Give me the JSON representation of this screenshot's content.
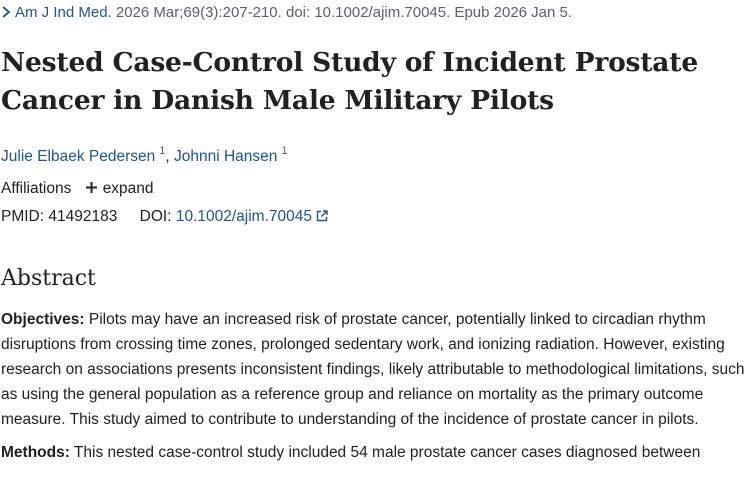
{
  "citation": {
    "journal": "Am J Ind Med.",
    "details": "2026 Mar;69(3):207-210. doi: 10.1002/ajim.70045. Epub 2026 Jan 5."
  },
  "article": {
    "title": "Nested Case-Control Study of Incident Prostate Cancer in Danish Male Military Pilots",
    "authors": [
      {
        "name": "Julie Elbaek Pedersen",
        "affiliation": "1"
      },
      {
        "name": "Johnni Hansen",
        "affiliation": "1"
      }
    ],
    "affiliations_label": "Affiliations",
    "expand_label": "expand",
    "pmid_label": "PMID:",
    "pmid": "41492183",
    "doi_label": "DOI:",
    "doi": "10.1002/ajim.70045"
  },
  "abstract": {
    "heading": "Abstract",
    "objectives_label": "Objectives:",
    "objectives_text": "Pilots may have an increased risk of prostate cancer, potentially linked to circadian rhythm disruptions from crossing time zones, prolonged sedentary work, and ionizing radiation. However, existing research on associations presents inconsistent findings, likely attributable to methodological limitations, such as using the general population as a reference group and reliance on mortality as the primary outcome measure. This study aimed to contribute to understanding of the incidence of prostate cancer in pilots.",
    "methods_label": "Methods:",
    "methods_text": "This nested case-control study included 54 male prostate cancer cases diagnosed between"
  },
  "colors": {
    "link": "#20558a",
    "text": "#212121",
    "muted": "#5b616b"
  },
  "icons": {
    "chevron": "chevron-right-icon",
    "expand": "plus-icon",
    "external": "external-link-icon"
  }
}
